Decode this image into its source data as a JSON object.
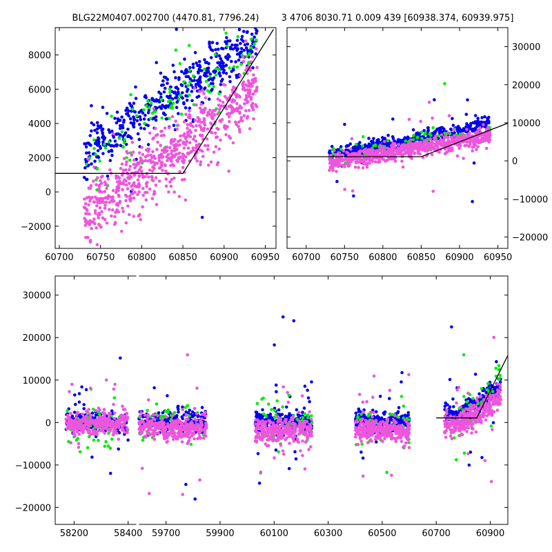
{
  "chart_data": [
    {
      "id": "top-left",
      "type": "scatter",
      "title": "BLG22M0407.002700 (4470.81, 7796.24)",
      "xlim": [
        60695,
        60963
      ],
      "ylim": [
        -3300,
        9600
      ],
      "xticks": [
        60700,
        60750,
        60800,
        60850,
        60900,
        60950
      ],
      "yticks": [
        -2000,
        0,
        2000,
        4000,
        6000,
        8000
      ],
      "ytick_side": "left",
      "model_line": {
        "x": [
          60675,
          60850,
          60960
        ],
        "y": [
          1080,
          1080,
          9500
        ]
      },
      "series": [
        {
          "name": "blue",
          "color": "#0000ee",
          "x_range": [
            60730,
            60940
          ],
          "trend": {
            "x0": 60730,
            "y0": 2100,
            "x1": 60940,
            "y1": 9000
          },
          "scatter": 700,
          "n": 500
        },
        {
          "name": "green",
          "color": "#00ee00",
          "x_range": [
            60730,
            60940
          ],
          "trend": {
            "x0": 60730,
            "y0": 1500,
            "x1": 60940,
            "y1": 8500
          },
          "scatter": 1100,
          "n": 100
        },
        {
          "name": "violet",
          "color": "#ee55dd",
          "x_range": [
            60730,
            60940
          ],
          "trend": {
            "x0": 60730,
            "y0": -1500,
            "x1": 60940,
            "y1": 6000
          },
          "scatter": 1000,
          "n": 700
        }
      ]
    },
    {
      "id": "top-right",
      "type": "scatter",
      "title": "3 4706 8030.71 0.009 439 [60938.374, 60939.975]",
      "xlim": [
        60675,
        60963
      ],
      "ylim": [
        -23000,
        35000
      ],
      "xticks": [
        60700,
        60750,
        60800,
        60850,
        60900,
        60950
      ],
      "yticks": [
        -20000,
        -10000,
        0,
        10000,
        20000,
        30000
      ],
      "ytick_side": "right",
      "model_line": {
        "x": [
          60675,
          60850,
          60963
        ],
        "y": [
          1080,
          1080,
          9900
        ]
      },
      "series": [
        {
          "name": "blue",
          "color": "#0000ee",
          "x_range": [
            60730,
            60940
          ],
          "trend": {
            "x0": 60730,
            "y0": 1500,
            "x1": 60940,
            "y1": 9500
          },
          "scatter": 900,
          "n": 500
        },
        {
          "name": "green",
          "color": "#00ee00",
          "x_range": [
            60730,
            60940
          ],
          "trend": {
            "x0": 60730,
            "y0": 1000,
            "x1": 60940,
            "y1": 8000
          },
          "scatter": 1500,
          "n": 90
        },
        {
          "name": "violet",
          "color": "#ee55dd",
          "x_range": [
            60730,
            60940
          ],
          "trend": {
            "x0": 60730,
            "y0": -500,
            "x1": 60940,
            "y1": 6500
          },
          "scatter": 1000,
          "n": 700
        }
      ]
    },
    {
      "id": "bottom",
      "type": "scatter",
      "title": "",
      "xlim": [
        58130,
        60965
      ],
      "ylim": [
        -24000,
        34500
      ],
      "axis_break": {
        "x_from": 58430,
        "x_to": 59600
      },
      "xticks": [
        58200,
        58400,
        59700,
        59900,
        60100,
        60300,
        60500,
        60700,
        60900
      ],
      "yticks": [
        -20000,
        -10000,
        0,
        10000,
        20000,
        30000
      ],
      "ytick_side": "left",
      "model_line": {
        "x": [
          60700,
          60850,
          60965
        ],
        "y": [
          1080,
          1080,
          15800
        ]
      },
      "seasons": [
        {
          "x_range": [
            58170,
            58400
          ],
          "blue": 0,
          "green": -1500,
          "violet": -200
        },
        {
          "x_range": [
            59600,
            59850
          ],
          "blue": 200,
          "green": -500,
          "violet": -1500
        },
        {
          "x_range": [
            60030,
            60240
          ],
          "blue": 300,
          "green": -300,
          "violet": -1800
        },
        {
          "x_range": [
            60400,
            60600
          ],
          "blue": 200,
          "green": -200,
          "violet": -1800
        },
        {
          "x_range": [
            60730,
            60940
          ],
          "blue": 2000,
          "green": 1500,
          "violet": -500,
          "rising": true
        }
      ],
      "series": [
        {
          "name": "blue",
          "color": "#0000ee",
          "scatter": 1200,
          "n_per_season": 220
        },
        {
          "name": "green",
          "color": "#00ee00",
          "scatter": 2500,
          "n_per_season": 50
        },
        {
          "name": "violet",
          "color": "#ee55dd",
          "scatter": 1300,
          "n_per_season": 320
        }
      ]
    }
  ]
}
